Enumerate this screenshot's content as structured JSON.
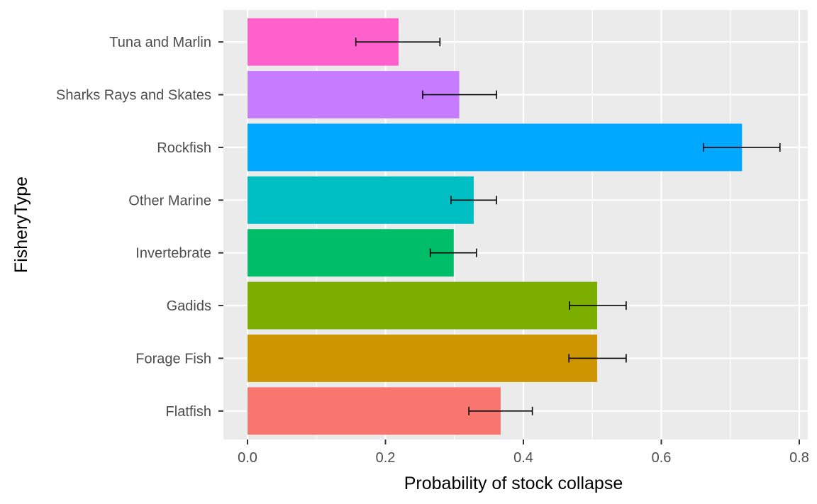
{
  "chart_data": {
    "type": "bar",
    "orientation": "horizontal",
    "title": "",
    "xlabel": "Probability of stock collapse",
    "ylabel": "FisheryType",
    "xlim": [
      0,
      0.8
    ],
    "x_ticks": [
      "0.0",
      "0.2",
      "0.4",
      "0.6",
      "0.8"
    ],
    "grid": true,
    "legend": "none",
    "categories": [
      "Flatfish",
      "Forage Fish",
      "Gadids",
      "Invertebrate",
      "Other Marine",
      "Rockfish",
      "Sharks Rays and Skates",
      "Tuna and Marlin"
    ],
    "values": [
      0.367,
      0.507,
      0.507,
      0.299,
      0.328,
      0.717,
      0.307,
      0.219
    ],
    "error_low": [
      0.321,
      0.466,
      0.467,
      0.265,
      0.295,
      0.661,
      0.254,
      0.157
    ],
    "error_high": [
      0.413,
      0.549,
      0.549,
      0.332,
      0.361,
      0.772,
      0.361,
      0.279
    ],
    "colors": [
      "#F8766D",
      "#CD9600",
      "#7CAE00",
      "#00BE67",
      "#00BFC4",
      "#00A9FF",
      "#C77CFF",
      "#FF61CC"
    ]
  }
}
